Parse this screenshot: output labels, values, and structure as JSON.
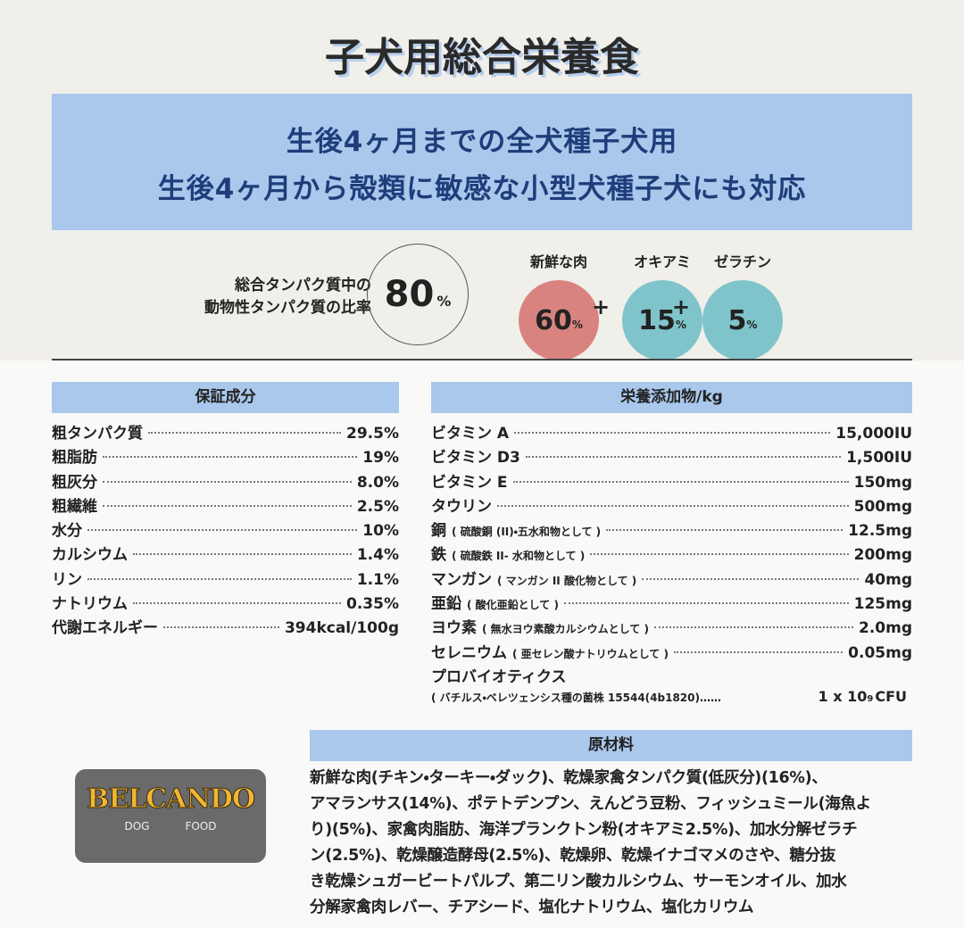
{
  "title": "子犬用総合栄養食",
  "banner": {
    "lines": [
      "生後4ヶ月までの全犬種子犬用",
      "生後4ヶ月から殻類に敏感な小型犬種子犬にも対応"
    ]
  },
  "ratio": {
    "label_lines": [
      "総合タンパク質中の",
      "動物性タンパク質の比率"
    ],
    "value": "80",
    "unit": "%"
  },
  "composition": {
    "plus": "+",
    "items": [
      {
        "label": "新鮮な肉",
        "value": "60",
        "unit": "%",
        "color": "#d88380"
      },
      {
        "label": "オキアミ",
        "value": "15",
        "unit": "%",
        "color": "#7fc4ca"
      },
      {
        "label": "ゼラチン",
        "value": "5",
        "unit": "%",
        "color": "#7fc4ca"
      }
    ]
  },
  "guaranteed": {
    "header": "保証成分",
    "rows": [
      {
        "name": "粗タンパク質",
        "value": "29.5%"
      },
      {
        "name": "粗脂肪",
        "value": "19%"
      },
      {
        "name": "粗灰分",
        "value": "8.0%"
      },
      {
        "name": "粗繊維",
        "value": "2.5%"
      },
      {
        "name": "水分",
        "value": "10%"
      },
      {
        "name": "カルシウム",
        "value": "1.4%"
      },
      {
        "name": "リン",
        "value": "1.1%"
      },
      {
        "name": "ナトリウム",
        "value": "0.35%"
      },
      {
        "name": "代謝エネルギー",
        "value": "394kcal/100g"
      }
    ]
  },
  "additives": {
    "header": "栄養添加物/kg",
    "rows": [
      {
        "name": "ビタミン A",
        "note": "",
        "value": "15,000IU"
      },
      {
        "name": "ビタミン D3",
        "note": "",
        "value": "1,500IU"
      },
      {
        "name": "ビタミン E",
        "note": "",
        "value": "150mg"
      },
      {
        "name": "タウリン",
        "note": "",
        "value": "500mg"
      },
      {
        "name": "銅",
        "note": "( 硫酸銅 (II)・五水和物として )",
        "value": "12.5mg"
      },
      {
        "name": "鉄",
        "note": "( 硫酸鉄 II- 水和物として )",
        "value": "200mg"
      },
      {
        "name": "マンガン",
        "note": "( マンガン II 酸化物として )",
        "value": "40mg"
      },
      {
        "name": "亜鉛",
        "note": "( 酸化亜鉛として )",
        "value": "125mg"
      },
      {
        "name": "ヨウ素",
        "note": "( 無水ヨウ素酸カルシウムとして )",
        "value": "2.0mg"
      },
      {
        "name": "セレニウム",
        "note": "( 亜セレン酸ナトリウムとして )",
        "value": "0.05mg"
      }
    ],
    "probiotic": {
      "name": "プロバイオティクス",
      "note": "( バチルス・ベレツェンシス種の菌株 15544(4b1820)……",
      "base": "1 x 10",
      "exp": "9",
      "unit": "CFU"
    }
  },
  "ingredients": {
    "header": "原材料",
    "lines": [
      "新鮮な肉(チキン・ターキー・ダック)、乾燥家禽タンパク質(低灰分)(16%)、",
      "アマランサス(14%)、ポテトデンプン、えんどう豆粉、フィッシュミール(海魚よ",
      "り)(5%)、家禽肉脂肪、海洋プランクトン粉(オキアミ2.5%)、加水分解ゼラチ",
      "ン(2.5%)、乾燥醸造酵母(2.5%)、乾燥卵、乾燥イナゴマメのさや、糖分抜",
      "き乾燥シュガービートパルプ、第二リン酸カルシウム、サーモンオイル、加水",
      "分解家禽肉レバー、チアシード、塩化ナトリウム、塩化カリウム"
    ]
  },
  "logo": {
    "brand": "BELCANDO",
    "left": "DOG",
    "right": "FOOD"
  }
}
